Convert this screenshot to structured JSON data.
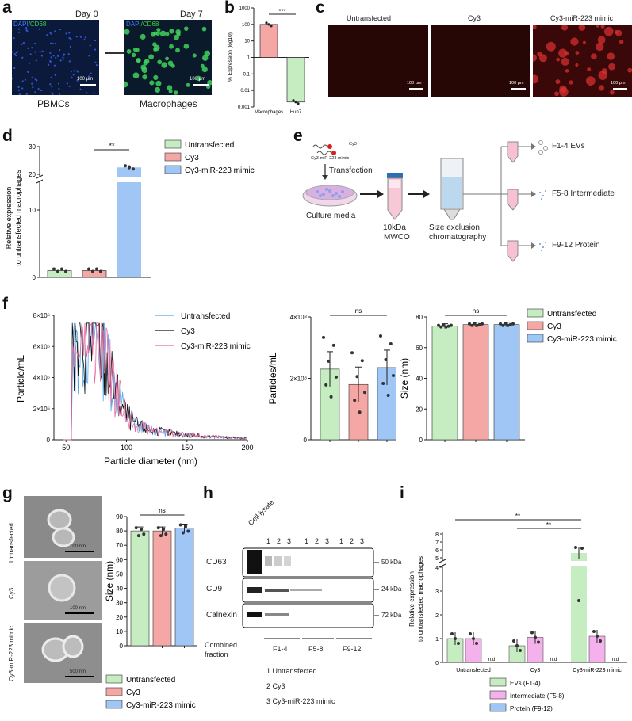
{
  "panels": {
    "a": {
      "letter": "a",
      "day0": "Day 0",
      "day7": "Day 7",
      "stain_dapi": "DAPI",
      "stain_cd68": "CD68",
      "scale": "100 μm",
      "pbmcs": "PBMCs",
      "macrophages": "Macrophages"
    },
    "b": {
      "letter": "b"
    },
    "c": {
      "letter": "c",
      "titles": [
        "Untransfected",
        "Cy3",
        "Cy3-miR-223 mimic"
      ],
      "scale": "100 μm"
    },
    "d": {
      "letter": "d"
    },
    "e": {
      "letter": "e",
      "cy3_tag": "Cy3",
      "mimic_tag": "Cy3-miR-223 mimic",
      "transfection": "Transfection",
      "culture": "Culture media",
      "mwco_line1": "10kDa",
      "mwco_line2": "MWCO",
      "sec_line1": "Size exclusion",
      "sec_line2": "chromatography",
      "fractions": [
        "F1-4 EVs",
        "F5-8 Intermediate",
        "F9-12 Protein"
      ]
    },
    "f": {
      "letter": "f"
    },
    "g": {
      "letter": "g",
      "row_labels": [
        "Untransfected",
        "Cy3",
        "Cy3-miR-223 mimic"
      ],
      "scales": [
        "100 nm",
        "100 nm",
        "500 nm"
      ]
    },
    "h": {
      "letter": "h",
      "cell_lysate": "Cell lysate",
      "lane_numbers": [
        "1",
        "2",
        "3",
        "1",
        "2",
        "3",
        "1",
        "2",
        "3"
      ],
      "bands": [
        "CD63",
        "CD9",
        "Calnexin"
      ],
      "kda": [
        "50 kDa",
        "24 kDa",
        "72 kDa"
      ],
      "combined": "Combined",
      "fraction": "fraction",
      "groups": [
        "F1-4",
        "F5-8",
        "F9-12"
      ],
      "key": [
        "1 Untransfected",
        "2 Cy3",
        "3 Cy3-miR-223 mimic"
      ]
    },
    "i": {
      "letter": "i"
    }
  },
  "colors": {
    "untransfected": "#c6ecc2",
    "cy3": "#f4a7a4",
    "mimic": "#9fc6f5",
    "evs": "#c6ecc2",
    "intermediate": "#f5b1ec",
    "protein": "#9fc6f5",
    "macrophage_bar": "#f4a7a4",
    "huh7_bar": "#c6ecc2"
  },
  "chart_data": [
    {
      "id": "b",
      "type": "bar",
      "ylabel": "% Expression  (log10)",
      "log_scale": true,
      "ylim": [
        0.001,
        1000
      ],
      "yticks": [
        "1000",
        "100",
        "10",
        "1",
        "0.1",
        "0.01",
        "0.001"
      ],
      "categories": [
        "Macrophages",
        "Huh7"
      ],
      "values": [
        100,
        0.002
      ],
      "significance": "***"
    },
    {
      "id": "d",
      "type": "bar",
      "ylabel_line1": "Relative expression",
      "ylabel_line2": "to untransfected macrophages",
      "axis_break": true,
      "ylim": [
        0,
        30
      ],
      "yticks": [
        "0",
        "10",
        "20",
        "30"
      ],
      "categories": [
        "Untransfected",
        "Cy3",
        "Cy3-miR-223 mimic"
      ],
      "values": [
        1.0,
        1.0,
        22.5
      ],
      "legend": [
        "Untransfected",
        "Cy3",
        "Cy3-miR-223 mimic"
      ],
      "significance": "**"
    },
    {
      "id": "f1",
      "type": "line",
      "xlabel": "Particle diameter (nm)",
      "ylabel": "Particle/mL",
      "xlim": [
        0,
        200
      ],
      "ylim": [
        0,
        8000000
      ],
      "xticks": [
        "50",
        "100",
        "150",
        "200"
      ],
      "yticks": [
        "0",
        "2×10⁶",
        "4×10⁶",
        "6×10⁶",
        "8×10⁶"
      ],
      "series": [
        {
          "name": "Untransfected"
        },
        {
          "name": "Cy3"
        },
        {
          "name": "Cy3-miR-223 mimic"
        }
      ]
    },
    {
      "id": "f2",
      "type": "bar",
      "ylabel": "Particles/mL",
      "ylim": [
        0,
        400000000
      ],
      "yticks": [
        "0",
        "2×10⁸",
        "4×10⁸"
      ],
      "categories": [
        "Untransfected",
        "Cy3",
        "Cy3-miR-223 mimic"
      ],
      "values": [
        230000000,
        180000000,
        235000000
      ],
      "significance": "ns"
    },
    {
      "id": "f3",
      "type": "bar",
      "ylabel": "Size (nm)",
      "ylim": [
        0,
        80
      ],
      "yticks": [
        "0",
        "20",
        "40",
        "60",
        "80"
      ],
      "categories": [
        "Untransfected",
        "Cy3",
        "Cy3-miR-223 mimic"
      ],
      "values": [
        74,
        75,
        75
      ],
      "legend": [
        "Untransfected",
        "Cy3",
        "Cy3-miR-223 mimic"
      ],
      "significance": "ns"
    },
    {
      "id": "g",
      "type": "bar",
      "ylabel": "Size (nm)",
      "ylim": [
        0,
        90
      ],
      "yticks": [
        "0",
        "10",
        "20",
        "30",
        "40",
        "50",
        "60",
        "70",
        "80",
        "90"
      ],
      "categories": [
        "Untransfected",
        "Cy3",
        "Cy3-miR-223 mimic"
      ],
      "values": [
        80,
        80,
        82
      ],
      "legend": [
        "Untransfected",
        "Cy3",
        "Cy3-miR-223 mimic"
      ],
      "significance": "ns"
    },
    {
      "id": "i",
      "type": "bar",
      "ylabel_line1": "Relative expression",
      "ylabel_line2": "to untransfected macrophages",
      "axis_break": true,
      "ylim": [
        0,
        8
      ],
      "yticks": [
        "0",
        "1",
        "2",
        "3",
        "4",
        "5",
        "6",
        "7",
        "8"
      ],
      "categories": [
        "Untransfected",
        "Cy3",
        "Cy3-miR-223 mimic"
      ],
      "series": [
        {
          "name": "EVs (F1-4)",
          "values": [
            1.0,
            0.7,
            5.6
          ]
        },
        {
          "name": "Intermediate (F5-8)",
          "values": [
            1.0,
            1.05,
            1.1
          ]
        },
        {
          "name": "Protein (F9-12)",
          "values": [
            null,
            null,
            null
          ]
        }
      ],
      "nd_label": "n.d",
      "significance": [
        "**",
        "**"
      ]
    }
  ]
}
